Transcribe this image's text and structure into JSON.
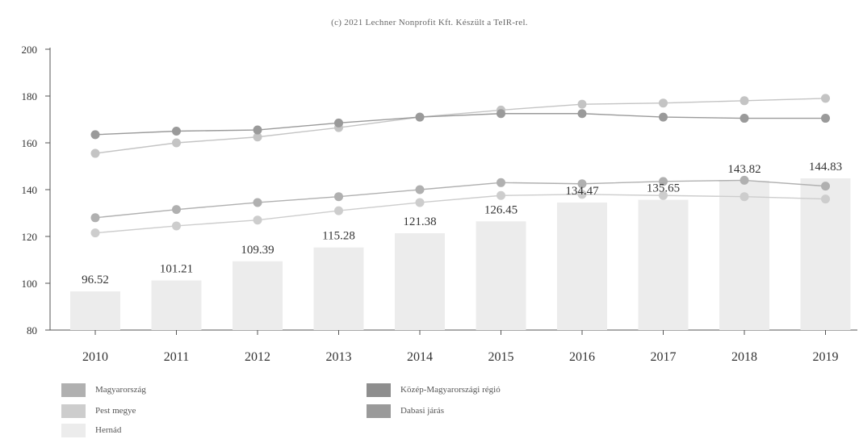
{
  "copyright": "(c) 2021 Lechner Nonprofit Kft. Készült a TeIR-rel.",
  "chart_data": {
    "type": "bar",
    "categories": [
      "2010",
      "2011",
      "2012",
      "2013",
      "2014",
      "2015",
      "2016",
      "2017",
      "2018",
      "2019"
    ],
    "ylim": [
      80,
      200
    ],
    "yticks": [
      80,
      100,
      120,
      140,
      160,
      180,
      200
    ],
    "grid": false,
    "legend_position": "bottom-left",
    "series": [
      {
        "name": "Hernád",
        "type": "bar",
        "color": "#ececec",
        "values": [
          96.52,
          101.21,
          109.39,
          115.28,
          121.38,
          126.45,
          134.47,
          135.65,
          143.82,
          144.83
        ],
        "labels": [
          "96.52",
          "101.21",
          "109.39",
          "115.28",
          "121.38",
          "126.45",
          "134.47",
          "135.65",
          "143.82",
          "144.83"
        ]
      },
      {
        "name": "Magyarország",
        "type": "line",
        "color": "#b0b0b0",
        "values": [
          128,
          131.5,
          134.5,
          137,
          140,
          143,
          142.5,
          143.5,
          144,
          141.5
        ]
      },
      {
        "name": "Pest megye",
        "type": "line",
        "color": "#cdcdcd",
        "values": [
          121.5,
          124.5,
          127,
          131,
          134.5,
          137.5,
          138,
          137.5,
          137,
          136
        ]
      },
      {
        "name": "Közép-Magyarországi régió",
        "type": "line",
        "color": "#c4c4c4",
        "values": [
          155.5,
          160,
          162.5,
          166.5,
          171,
          174,
          176.5,
          177,
          178,
          179
        ]
      },
      {
        "name": "Dabasi járás",
        "type": "line",
        "color": "#9a9a9a",
        "values": [
          163.5,
          165,
          165.5,
          168.5,
          171,
          172.5,
          172.5,
          171,
          170.5,
          170.5
        ]
      }
    ]
  },
  "legend": [
    {
      "label": "Magyarország",
      "color": "#b0b0b0"
    },
    {
      "label": "Közép-Magyarországi régió",
      "color": "#8e8e8e"
    },
    {
      "label": "Pest megye",
      "color": "#cdcdcd"
    },
    {
      "label": "Dabasi járás",
      "color": "#9a9a9a"
    },
    {
      "label": "Hernád",
      "color": "#ececec"
    }
  ]
}
